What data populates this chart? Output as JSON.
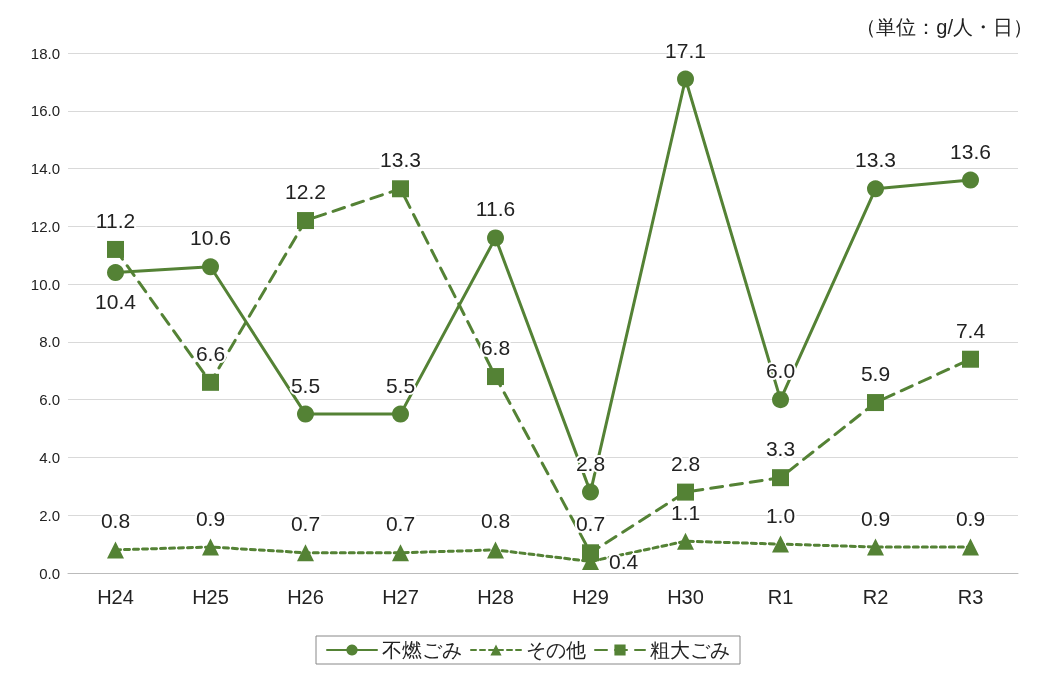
{
  "chart_data": {
    "type": "line",
    "categories": [
      "H24",
      "H25",
      "H26",
      "H27",
      "H28",
      "H29",
      "H30",
      "R1",
      "R2",
      "R3"
    ],
    "series": [
      {
        "name": "不燃ごみ",
        "color": "#548235",
        "marker": "circle",
        "line_style": "solid",
        "values": [
          10.4,
          10.6,
          5.5,
          5.5,
          11.6,
          2.8,
          17.1,
          6.0,
          13.3,
          13.6
        ],
        "value_labels": [
          "10.4",
          "10.6",
          "5.5",
          "5.5",
          "11.6",
          "2.8",
          "17.1",
          "6.0",
          "13.3",
          "13.6"
        ]
      },
      {
        "name": "その他",
        "color": "#548235",
        "marker": "triangle",
        "line_style": "dotted",
        "values": [
          0.8,
          0.9,
          0.7,
          0.7,
          0.8,
          0.4,
          1.1,
          1.0,
          0.9,
          0.9
        ],
        "value_labels": [
          "0.8",
          "0.9",
          "0.7",
          "0.7",
          "0.8",
          "0.4",
          "1.1",
          "1.0",
          "0.9",
          "0.9"
        ]
      },
      {
        "name": "粗大ごみ",
        "color": "#548235",
        "marker": "square",
        "line_style": "dashed",
        "values": [
          11.2,
          6.6,
          12.2,
          13.3,
          6.8,
          0.7,
          2.8,
          3.3,
          5.9,
          7.4
        ],
        "value_labels": [
          "11.2",
          "6.6",
          "12.2",
          "13.3",
          "6.8",
          "0.7",
          "2.8",
          "3.3",
          "5.9",
          "7.4"
        ]
      }
    ],
    "ylim": [
      0,
      18
    ],
    "yticks": [
      {
        "value": 0,
        "label": "0.0"
      },
      {
        "value": 2,
        "label": "2.0"
      },
      {
        "value": 4,
        "label": "4.0"
      },
      {
        "value": 6,
        "label": "6.0"
      },
      {
        "value": 8,
        "label": "8.0"
      },
      {
        "value": 10,
        "label": "10.0"
      },
      {
        "value": 12,
        "label": "12.0"
      },
      {
        "value": 14,
        "label": "14.0"
      },
      {
        "value": 16,
        "label": "16.0"
      },
      {
        "value": 18,
        "label": "18.0"
      }
    ],
    "grid": "y",
    "legend": "bottom",
    "annotations": [
      "（単位：g/人・日）"
    ]
  }
}
